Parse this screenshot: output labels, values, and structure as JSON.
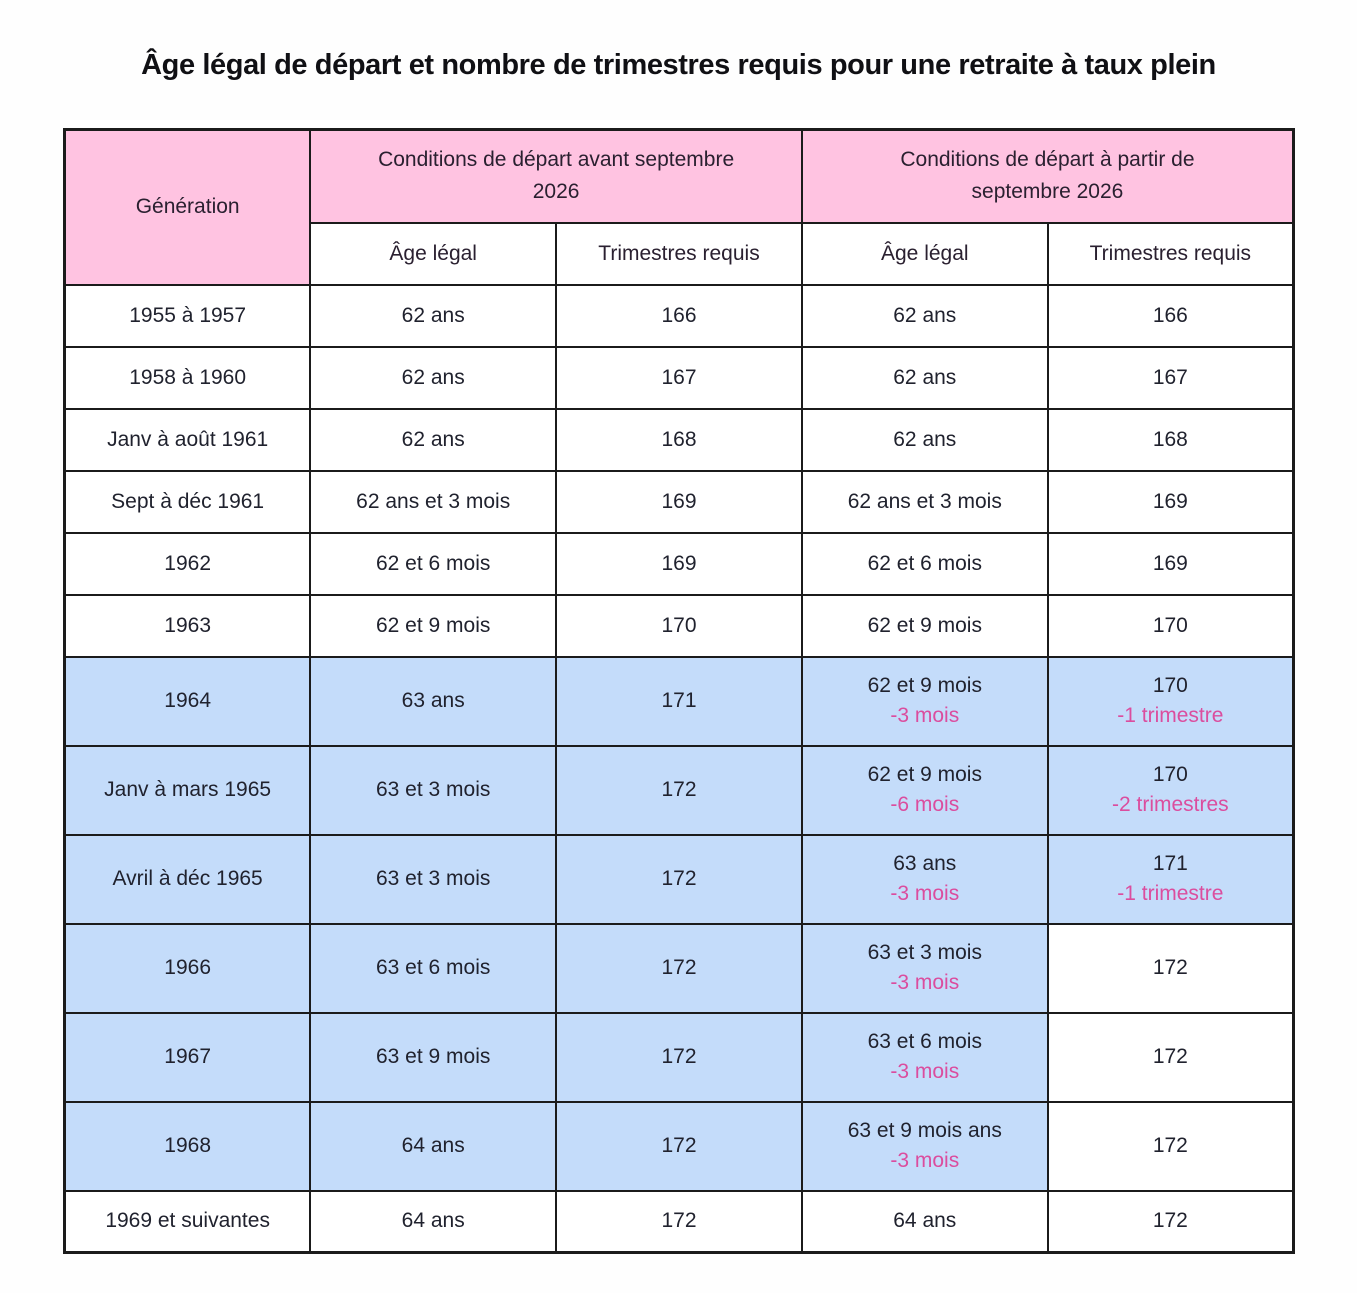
{
  "title": "Âge légal de départ et nombre de trimestres requis pour une retraite à taux plein",
  "colors": {
    "header_pink": "#ffc3e1",
    "highlight_blue": "#c4dcfa",
    "delta_text_pink": "#db4d9e",
    "body_text": "#20222e",
    "border": "#1b1b1b"
  },
  "table": {
    "header": {
      "generation_label": "Génération",
      "group_before_label": "Conditions de départ avant septembre\n2026",
      "group_after_label": "Conditions de départ à partir de\nseptembre 2026",
      "col_age_before": "Âge légal",
      "col_trimestres_before": "Trimestres requis",
      "col_age_after": "Âge légal",
      "col_trimestres_after": "Trimestres requis"
    },
    "rows": [
      {
        "generation": "1955 à 1957",
        "before": {
          "age": "62 ans",
          "trimestres": "166"
        },
        "after": {
          "age": "62 ans",
          "trimestres": "166"
        }
      },
      {
        "generation": "1958 à 1960",
        "before": {
          "age": "62 ans",
          "trimestres": "167"
        },
        "after": {
          "age": "62 ans",
          "trimestres": "167"
        }
      },
      {
        "generation": "Janv à août 1961",
        "before": {
          "age": "62 ans",
          "trimestres": "168"
        },
        "after": {
          "age": "62 ans",
          "trimestres": "168"
        }
      },
      {
        "generation": "Sept à déc 1961",
        "before": {
          "age": "62 ans et 3 mois",
          "trimestres": "169"
        },
        "after": {
          "age": "62 ans et 3 mois",
          "trimestres": "169"
        }
      },
      {
        "generation": "1962",
        "before": {
          "age": "62 et 6 mois",
          "trimestres": "169"
        },
        "after": {
          "age": "62 et 6 mois",
          "trimestres": "169"
        }
      },
      {
        "generation": "1963",
        "before": {
          "age": "62 et 9 mois",
          "trimestres": "170"
        },
        "after": {
          "age": "62 et 9 mois",
          "trimestres": "170"
        }
      },
      {
        "generation": "1964",
        "before": {
          "age": "63 ans",
          "trimestres": "171"
        },
        "after": {
          "age": "62 et 9 mois",
          "age_delta": "-3 mois",
          "trimestres": "170",
          "trimestres_delta": "-1 trimestre"
        }
      },
      {
        "generation": "Janv à mars 1965",
        "before": {
          "age": "63 et 3 mois",
          "trimestres": "172"
        },
        "after": {
          "age": "62 et 9 mois",
          "age_delta": "-6 mois",
          "trimestres": "170",
          "trimestres_delta": "-2 trimestres"
        }
      },
      {
        "generation": "Avril à déc 1965",
        "before": {
          "age": "63 et 3 mois",
          "trimestres": "172"
        },
        "after": {
          "age": "63 ans",
          "age_delta": "-3 mois",
          "trimestres": "171",
          "trimestres_delta": "-1 trimestre"
        }
      },
      {
        "generation": "1966",
        "before": {
          "age": "63 et 6 mois",
          "trimestres": "172"
        },
        "after": {
          "age": "63 et 3 mois",
          "age_delta": "-3 mois",
          "trimestres": "172"
        }
      },
      {
        "generation": "1967",
        "before": {
          "age": "63 et 9 mois",
          "trimestres": "172"
        },
        "after": {
          "age": "63 et 6 mois",
          "age_delta": "-3 mois",
          "trimestres": "172"
        }
      },
      {
        "generation": "1968",
        "before": {
          "age": "64 ans",
          "trimestres": "172"
        },
        "after": {
          "age": "63 et 9 mois ans",
          "age_delta": "-3 mois",
          "trimestres": "172"
        }
      },
      {
        "generation": "1969 et suivantes",
        "before": {
          "age": "64 ans",
          "trimestres": "172"
        },
        "after": {
          "age": "64 ans",
          "trimestres": "172"
        }
      }
    ]
  }
}
